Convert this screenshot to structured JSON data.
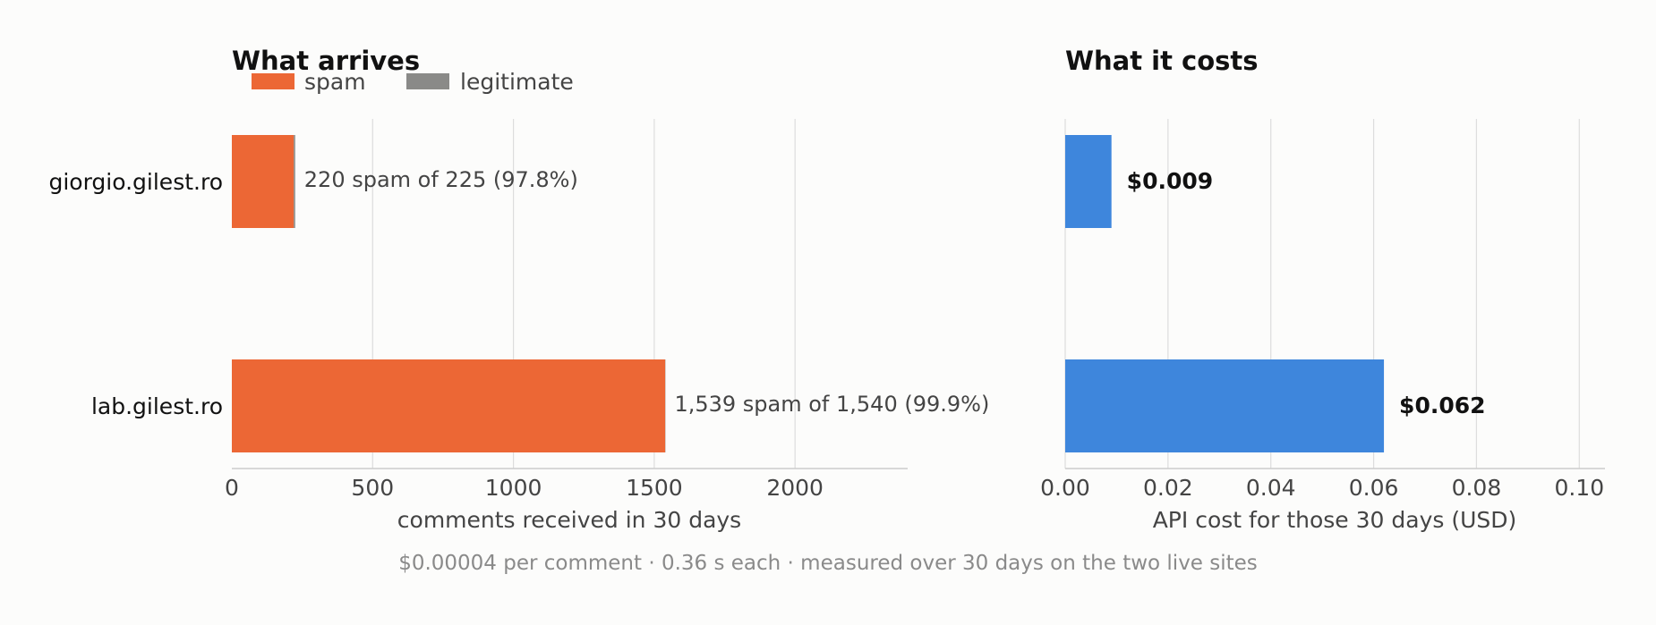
{
  "colors": {
    "spam": "#ec6735",
    "legitimate": "#8a8a88",
    "cost": "#3e86dc"
  },
  "chart_data": [
    {
      "type": "bar",
      "orientation": "horizontal",
      "stacked": true,
      "title": "What arrives",
      "categories": [
        "giorgio.gilest.ro",
        "lab.gilest.ro"
      ],
      "series": [
        {
          "name": "spam",
          "values": [
            220,
            1539
          ]
        },
        {
          "name": "legitimate",
          "values": [
            5,
            1
          ]
        }
      ],
      "bar_labels": [
        "220 spam of 225  (97.8%)",
        "1,539 spam of 1,540  (99.9%)"
      ],
      "xlabel": "comments received in 30 days",
      "xlim": [
        0,
        2400
      ],
      "xticks": [
        0,
        500,
        1000,
        1500,
        2000
      ],
      "xtick_labels": [
        "0",
        "500",
        "1000",
        "1500",
        "2000"
      ],
      "grid": "vertical",
      "legend_position": "top-left"
    },
    {
      "type": "bar",
      "orientation": "horizontal",
      "title": "What it costs",
      "categories": [
        "giorgio.gilest.ro",
        "lab.gilest.ro"
      ],
      "values": [
        0.009,
        0.062
      ],
      "bar_labels": [
        "$0.009",
        "$0.062"
      ],
      "xlabel": "API cost for those 30 days (USD)",
      "xlim": [
        0,
        0.105
      ],
      "xticks": [
        0,
        0.02,
        0.04,
        0.06,
        0.08,
        0.1
      ],
      "xtick_labels": [
        "0.00",
        "0.02",
        "0.04",
        "0.06",
        "0.08",
        "0.10"
      ],
      "grid": "vertical"
    }
  ],
  "footnote": "$0.00004 per comment · 0.36 s each · measured over 30 days on the two live sites"
}
